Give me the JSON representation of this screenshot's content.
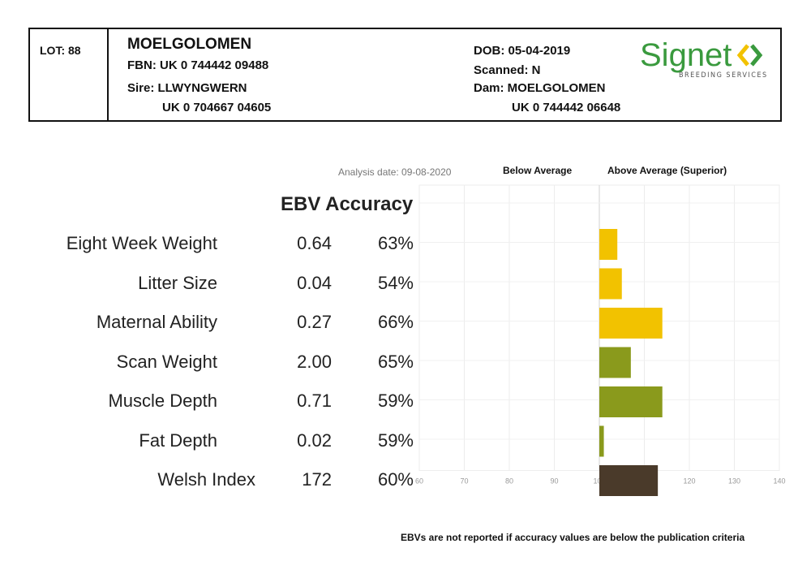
{
  "header": {
    "lot": "LOT: 88",
    "name": "MOELGOLOMEN",
    "fbn": "FBN: UK 0 744442 09488",
    "sire": "Sire: LLWYNGWERN",
    "sire_id": "UK 0 704667 04605",
    "dob": "DOB: 05-04-2019",
    "scanned": "Scanned: N",
    "dam": "Dam: MOELGOLOMEN",
    "dam_id": "UK 0 744442 06648",
    "logo_text": "Signet",
    "logo_sub": "BREEDING SERVICES"
  },
  "chart_data": {
    "type": "bar",
    "orientation": "horizontal",
    "analysis_date": "Analysis date: 09-08-2020",
    "legend_below": "Below Average",
    "legend_above": "Above Average (Superior)",
    "col_header": "EBV Accuracy",
    "categories": [
      "Eight Week Weight",
      "Litter Size",
      "Maternal Ability",
      "Scan Weight",
      "Muscle Depth",
      "Fat Depth",
      "Welsh Index"
    ],
    "ebv": [
      "0.64",
      "0.04",
      "0.27",
      "2.00",
      "0.71",
      "0.02",
      "172"
    ],
    "accuracy": [
      "63%",
      "54%",
      "66%",
      "65%",
      "59%",
      "59%",
      "60%"
    ],
    "values": [
      104,
      105,
      114,
      107,
      114,
      101,
      113
    ],
    "baseline": 100,
    "xlim": [
      60,
      140
    ],
    "xticks": [
      "60",
      "70",
      "80",
      "90",
      "100",
      "110",
      "120",
      "130",
      "140"
    ],
    "colors": [
      "#f2c200",
      "#f2c200",
      "#f2c200",
      "#8a9a1c",
      "#8a9a1c",
      "#8a9a1c",
      "#4a3a2a"
    ],
    "grid": true,
    "footnote": "EBVs are not reported if accuracy values are below the publication criteria"
  }
}
